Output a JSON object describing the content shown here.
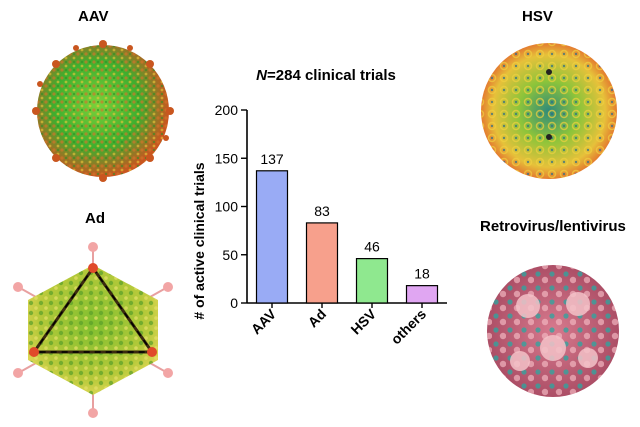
{
  "labels": {
    "aav": "AAV",
    "ad": "Ad",
    "hsv": "HSV",
    "retro": "Retrovirus/lentivirus"
  },
  "colors": {
    "aav_bar": "#99abf5",
    "ad_bar": "#f7a08c",
    "hsv_bar": "#8fe88f",
    "others_bar": "#e0a6f2"
  },
  "chart_data": {
    "type": "bar",
    "title_prefix": "N",
    "title_rest": "=284 clinical trials",
    "ylabel": "# of active clinical trials",
    "xlabel": "",
    "categories": [
      "AAV",
      "Ad",
      "HSV",
      "others"
    ],
    "values": [
      137,
      83,
      46,
      18
    ],
    "ylim": [
      0,
      200
    ],
    "yticks": [
      0,
      50,
      100,
      150,
      200
    ],
    "grid": false
  }
}
